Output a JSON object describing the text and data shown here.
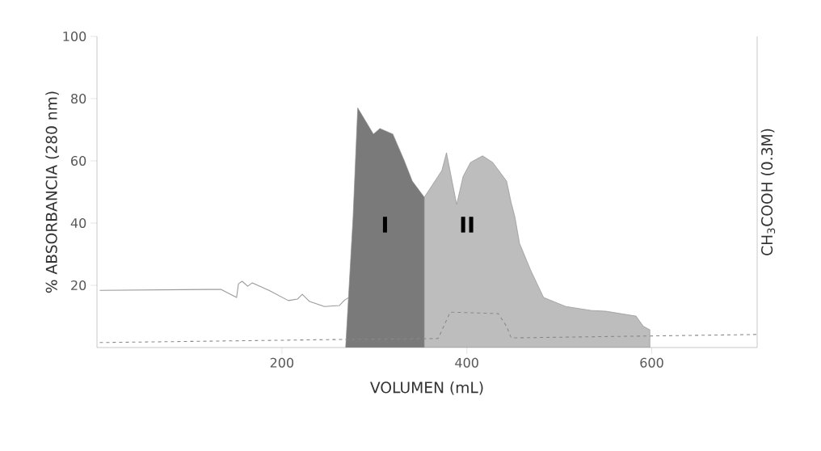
{
  "chart_data": {
    "type": "line",
    "xlabel": "VOLUMEN (mL)",
    "ylabel": "% ABSORBANCIA (280 nm)",
    "y2label": "CH$_{3}$COOH (0.3M)",
    "xlim": [
      0,
      714
    ],
    "ylim": [
      0,
      100
    ],
    "xticks": [
      200,
      400,
      600
    ],
    "yticks": [
      20,
      40,
      60,
      80,
      100
    ],
    "series": [
      {
        "color": "#999999",
        "x": [
          3,
          134,
          151,
          153,
          157,
          163,
          168,
          186,
          207,
          217,
          222,
          230,
          246,
          262,
          268,
          272
        ],
        "values": [
          18.4,
          18.7,
          16.1,
          20.5,
          21.3,
          19.7,
          20.8,
          18.4,
          15.1,
          15.6,
          17.1,
          14.8,
          13.2,
          13.5,
          15.3,
          16
        ]
      },
      {
        "type": "area",
        "color": "#7a7a7a",
        "x": [
          269,
          272,
          277,
          282,
          299,
          306,
          320,
          332,
          341,
          354
        ],
        "values": [
          0.3,
          16,
          42,
          77,
          68.6,
          70.4,
          68.6,
          60.3,
          53.5,
          48.3
        ]
      },
      {
        "type": "area",
        "color": "#bdbdbd",
        "x": [
          354,
          373,
          378,
          389,
          396,
          404,
          417,
          428,
          443,
          448,
          452,
          457,
          469,
          483,
          507,
          535,
          550,
          583,
          591,
          598,
          598
        ],
        "values": [
          48.3,
          56.9,
          62.6,
          46,
          55,
          59.5,
          61.6,
          59.5,
          53.5,
          46.5,
          42,
          33.5,
          24.9,
          16.1,
          13.2,
          11.9,
          11.7,
          10.1,
          6.8,
          5.7,
          0
        ]
      },
      {
        "color": "#888888",
        "line_style": "dashed",
        "x": [
          3,
          265,
          369,
          382,
          434,
          443,
          448,
          714
        ],
        "values": [
          1.6,
          2.6,
          2.9,
          11.4,
          10.9,
          6.8,
          3.1,
          4.2
        ]
      }
    ],
    "annotations": [
      "I",
      "II"
    ]
  }
}
